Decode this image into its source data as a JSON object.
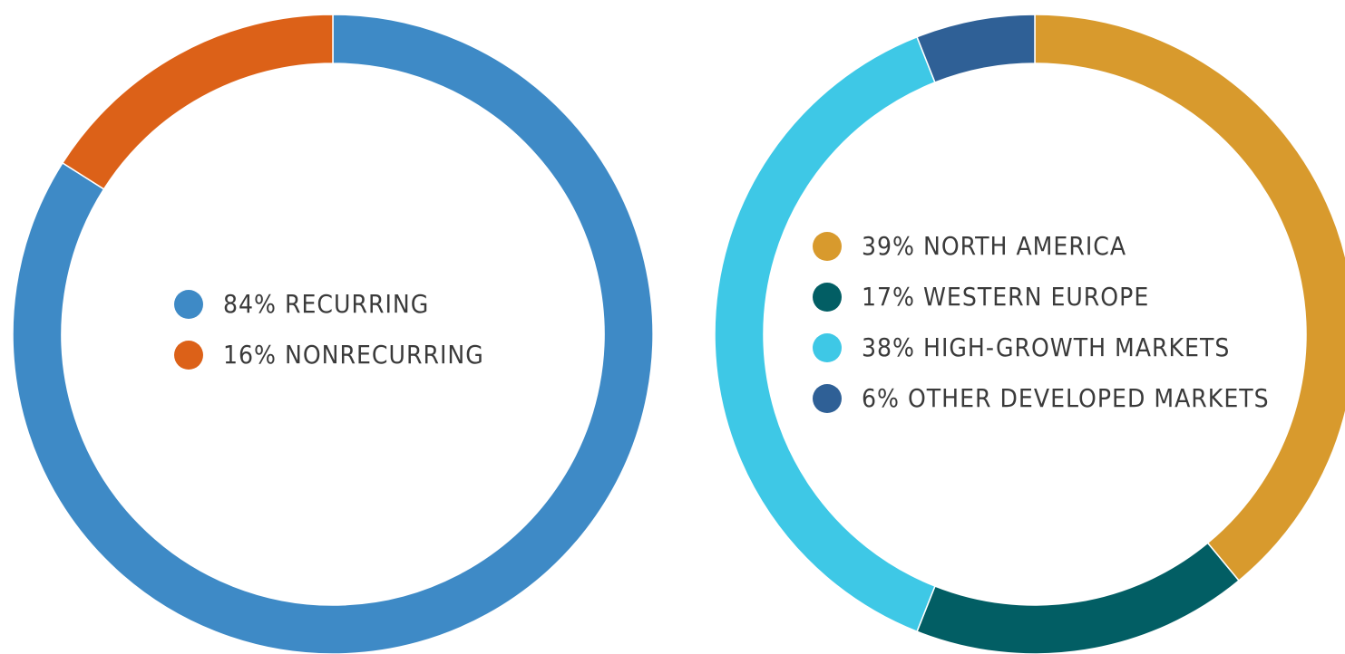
{
  "chart_data": [
    {
      "type": "donut",
      "categories": [
        "RECURRING",
        "NONRECURRING"
      ],
      "values": [
        84,
        16
      ],
      "value_labels": [
        "84%",
        "16%"
      ],
      "colors": [
        "#3e8ac6",
        "#dc6118"
      ]
    },
    {
      "type": "donut",
      "categories": [
        "NORTH AMERICA",
        "WESTERN EUROPE",
        "HIGH-GROWTH MARKETS",
        "OTHER DEVELOPED MARKETS"
      ],
      "values": [
        39,
        17,
        38,
        6
      ],
      "value_labels": [
        "39%",
        "17%",
        "38%",
        "6%"
      ],
      "colors": [
        "#d89a2d",
        "#025e64",
        "#3ec8e6",
        "#2f6096"
      ]
    }
  ]
}
